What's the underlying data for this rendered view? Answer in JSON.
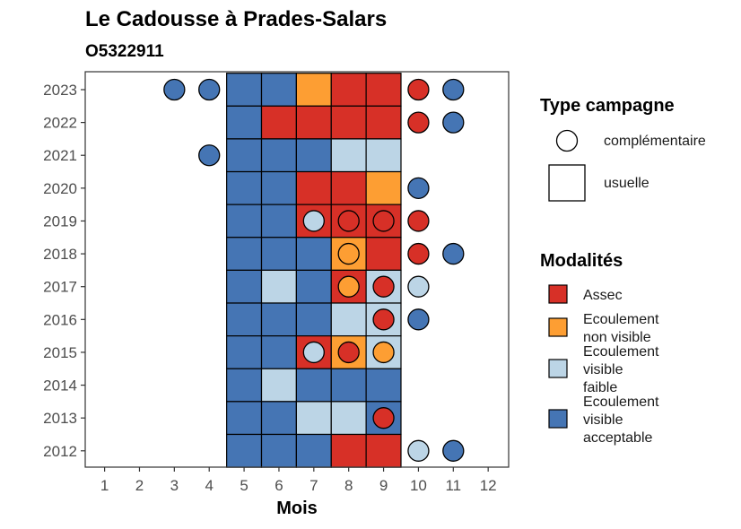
{
  "chart_data": {
    "type": "heatmap",
    "title": "Le Cadousse à Prades-Salars",
    "subtitle": "O5322911",
    "xlabel": "Mois",
    "ylabel": "",
    "x_ticks": [
      "1",
      "2",
      "3",
      "4",
      "5",
      "6",
      "7",
      "8",
      "9",
      "10",
      "11",
      "12"
    ],
    "xlim": [
      1,
      12
    ],
    "y_ticks": [
      "2012",
      "2013",
      "2014",
      "2015",
      "2016",
      "2017",
      "2018",
      "2019",
      "2020",
      "2021",
      "2022",
      "2023"
    ],
    "ylim": [
      2012,
      2023
    ],
    "grid": false,
    "colors": {
      "Assec": "#d73027",
      "Ecoulement non visible": "#fd9e33",
      "Ecoulement visible faible": "#bcd5e6",
      "Ecoulement visible acceptable": "#4575b4"
    },
    "legend": {
      "placement": "right",
      "shape_title": "Type campagne",
      "shapes": [
        {
          "key": "complementaire",
          "label": "complémentaire"
        },
        {
          "key": "usuelle",
          "label": "usuelle"
        }
      ],
      "fill_title": "Modalités",
      "fills": [
        {
          "key": "Assec",
          "lines": [
            "Assec"
          ]
        },
        {
          "key": "Ecoulement non visible",
          "lines": [
            "Ecoulement",
            "non visible"
          ]
        },
        {
          "key": "Ecoulement visible faible",
          "lines": [
            "Ecoulement",
            "visible",
            "faible"
          ]
        },
        {
          "key": "Ecoulement visible acceptable",
          "lines": [
            "Ecoulement",
            "visible",
            "acceptable"
          ]
        }
      ]
    },
    "usuelle": [
      {
        "year": 2023,
        "m": [
          5,
          6
        ],
        "v": "Ecoulement visible acceptable"
      },
      {
        "year": 2023,
        "m": [
          7
        ],
        "v": "Ecoulement non visible"
      },
      {
        "year": 2023,
        "m": [
          8,
          9
        ],
        "v": "Assec"
      },
      {
        "year": 2022,
        "m": [
          5
        ],
        "v": "Ecoulement visible acceptable"
      },
      {
        "year": 2022,
        "m": [
          6,
          7,
          8,
          9
        ],
        "v": "Assec"
      },
      {
        "year": 2021,
        "m": [
          5,
          6,
          7
        ],
        "v": "Ecoulement visible acceptable"
      },
      {
        "year": 2021,
        "m": [
          8,
          9
        ],
        "v": "Ecoulement visible faible"
      },
      {
        "year": 2020,
        "m": [
          5,
          6
        ],
        "v": "Ecoulement visible acceptable"
      },
      {
        "year": 2020,
        "m": [
          7,
          8
        ],
        "v": "Assec"
      },
      {
        "year": 2020,
        "m": [
          9
        ],
        "v": "Ecoulement non visible"
      },
      {
        "year": 2019,
        "m": [
          5,
          6
        ],
        "v": "Ecoulement visible acceptable"
      },
      {
        "year": 2019,
        "m": [
          7,
          8,
          9
        ],
        "v": "Assec"
      },
      {
        "year": 2018,
        "m": [
          5,
          6,
          7
        ],
        "v": "Ecoulement visible acceptable"
      },
      {
        "year": 2018,
        "m": [
          8
        ],
        "v": "Ecoulement non visible"
      },
      {
        "year": 2018,
        "m": [
          9
        ],
        "v": "Assec"
      },
      {
        "year": 2017,
        "m": [
          5
        ],
        "v": "Ecoulement visible acceptable"
      },
      {
        "year": 2017,
        "m": [
          6
        ],
        "v": "Ecoulement visible faible"
      },
      {
        "year": 2017,
        "m": [
          7
        ],
        "v": "Ecoulement visible acceptable"
      },
      {
        "year": 2017,
        "m": [
          8
        ],
        "v": "Assec"
      },
      {
        "year": 2017,
        "m": [
          9
        ],
        "v": "Ecoulement visible faible"
      },
      {
        "year": 2016,
        "m": [
          5,
          6,
          7
        ],
        "v": "Ecoulement visible acceptable"
      },
      {
        "year": 2016,
        "m": [
          8,
          9
        ],
        "v": "Ecoulement visible faible"
      },
      {
        "year": 2015,
        "m": [
          5,
          6
        ],
        "v": "Ecoulement visible acceptable"
      },
      {
        "year": 2015,
        "m": [
          7
        ],
        "v": "Assec"
      },
      {
        "year": 2015,
        "m": [
          8
        ],
        "v": "Ecoulement non visible"
      },
      {
        "year": 2015,
        "m": [
          9
        ],
        "v": "Ecoulement visible faible"
      },
      {
        "year": 2014,
        "m": [
          5
        ],
        "v": "Ecoulement visible acceptable"
      },
      {
        "year": 2014,
        "m": [
          6
        ],
        "v": "Ecoulement visible faible"
      },
      {
        "year": 2014,
        "m": [
          7,
          8,
          9
        ],
        "v": "Ecoulement visible acceptable"
      },
      {
        "year": 2013,
        "m": [
          5,
          6
        ],
        "v": "Ecoulement visible acceptable"
      },
      {
        "year": 2013,
        "m": [
          7,
          8
        ],
        "v": "Ecoulement visible faible"
      },
      {
        "year": 2013,
        "m": [
          9
        ],
        "v": "Ecoulement visible acceptable"
      },
      {
        "year": 2012,
        "m": [
          5,
          6,
          7
        ],
        "v": "Ecoulement visible acceptable"
      },
      {
        "year": 2012,
        "m": [
          8,
          9
        ],
        "v": "Assec"
      }
    ],
    "complementaire": [
      {
        "year": 2023,
        "m": 3,
        "v": "Ecoulement visible acceptable"
      },
      {
        "year": 2023,
        "m": 4,
        "v": "Ecoulement visible acceptable"
      },
      {
        "year": 2023,
        "m": 10,
        "v": "Assec"
      },
      {
        "year": 2023,
        "m": 11,
        "v": "Ecoulement visible acceptable"
      },
      {
        "year": 2022,
        "m": 10,
        "v": "Assec"
      },
      {
        "year": 2022,
        "m": 11,
        "v": "Ecoulement visible acceptable"
      },
      {
        "year": 2021,
        "m": 4,
        "v": "Ecoulement visible acceptable"
      },
      {
        "year": 2020,
        "m": 10,
        "v": "Ecoulement visible acceptable"
      },
      {
        "year": 2019,
        "m": 7,
        "v": "Ecoulement visible faible"
      },
      {
        "year": 2019,
        "m": 8,
        "v": "Assec"
      },
      {
        "year": 2019,
        "m": 9,
        "v": "Assec"
      },
      {
        "year": 2019,
        "m": 10,
        "v": "Assec"
      },
      {
        "year": 2018,
        "m": 8,
        "v": "Ecoulement non visible"
      },
      {
        "year": 2018,
        "m": 10,
        "v": "Assec"
      },
      {
        "year": 2018,
        "m": 11,
        "v": "Ecoulement visible acceptable"
      },
      {
        "year": 2017,
        "m": 8,
        "v": "Ecoulement non visible"
      },
      {
        "year": 2017,
        "m": 9,
        "v": "Assec"
      },
      {
        "year": 2017,
        "m": 10,
        "v": "Ecoulement visible faible"
      },
      {
        "year": 2016,
        "m": 9,
        "v": "Assec"
      },
      {
        "year": 2016,
        "m": 10,
        "v": "Ecoulement visible acceptable"
      },
      {
        "year": 2015,
        "m": 7,
        "v": "Ecoulement visible faible"
      },
      {
        "year": 2015,
        "m": 8,
        "v": "Assec"
      },
      {
        "year": 2015,
        "m": 9,
        "v": "Ecoulement non visible"
      },
      {
        "year": 2013,
        "m": 9,
        "v": "Assec"
      },
      {
        "year": 2012,
        "m": 10,
        "v": "Ecoulement visible faible"
      },
      {
        "year": 2012,
        "m": 11,
        "v": "Ecoulement visible acceptable"
      }
    ]
  }
}
